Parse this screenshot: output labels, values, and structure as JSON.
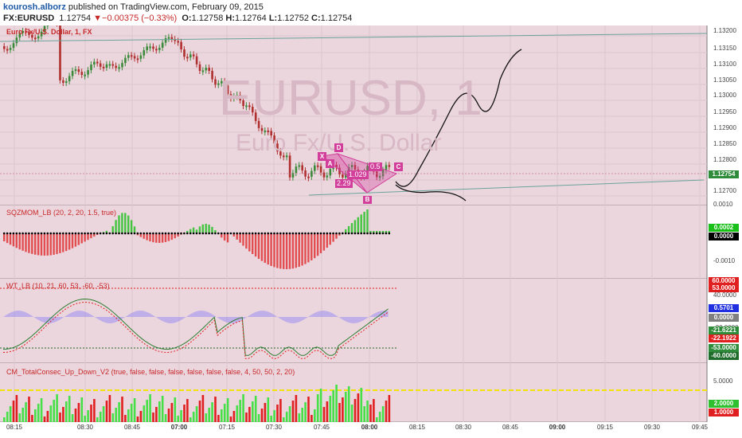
{
  "header": {
    "author": "kourosh.alborz",
    "published_text": " published on TradingView.com, February 09, 2015",
    "symbol": "FX:EURUSD",
    "last_price": "1.12754",
    "change": "−0.00375 (−0.33%)",
    "ohlc": [
      {
        "label": "O:",
        "value": "1.12758"
      },
      {
        "label": "H:",
        "value": "1.12764"
      },
      {
        "label": "L:",
        "value": "1.12752"
      },
      {
        "label": "C:",
        "value": "1.12754"
      }
    ]
  },
  "watermark": {
    "symbol": "EURUSD, 1",
    "name": "Euro Fx/U.S. Dollar"
  },
  "panes": {
    "price": {
      "label": "Euro Fx/U.S. Dollar, 1, FX",
      "y_ticks": [
        "1.13200",
        "1.13150",
        "1.13100",
        "1.13050",
        "1.13000",
        "1.12950",
        "1.12900",
        "1.12850",
        "1.12800",
        "1.12700"
      ],
      "current_tag": "1.12754",
      "pattern_labels": {
        "x": "X",
        "a": "A",
        "b": "B",
        "c": "C",
        "d": "D",
        "r1": "2.29",
        "r2": "1.029",
        "r3": "0.5"
      }
    },
    "sqzmom": {
      "label": "SQZMOM_LB (20, 2, 20, 1.5, true)",
      "y_ticks": [
        "0.0010",
        "-0.0010"
      ],
      "tags": [
        "0.0002",
        "0.0000"
      ]
    },
    "wt": {
      "label": "WT_LB (10, 21, 60, 53, -60, -53)",
      "y_ticks": [
        "40.0000",
        "-20.0000"
      ],
      "tags": [
        "60.0000",
        "53.0000",
        "0.5701",
        "0.0000",
        "-21.6221",
        "-22.1922",
        "-53.0000",
        "-60.0000"
      ]
    },
    "cm": {
      "label": "CM_TotalConsec_Up_Down_V2 (true, false, false, false, false, false, false, 4, 50, 50, 2, 20)",
      "y_ticks": [
        "5.0000"
      ],
      "tags": [
        "2.0000",
        "1.0000"
      ]
    }
  },
  "x_axis": [
    {
      "label": "08:15",
      "bold": false
    },
    {
      "label": "08:30",
      "bold": false
    },
    {
      "label": "08:45",
      "bold": false
    },
    {
      "label": "07:00",
      "bold": true
    },
    {
      "label": "07:15",
      "bold": false
    },
    {
      "label": "07:30",
      "bold": false
    },
    {
      "label": "07:45",
      "bold": false
    },
    {
      "label": "08:00",
      "bold": true
    },
    {
      "label": "08:15",
      "bold": false
    },
    {
      "label": "08:30",
      "bold": false
    },
    {
      "label": "08:45",
      "bold": false
    },
    {
      "label": "09:00",
      "bold": true
    },
    {
      "label": "09:15",
      "bold": false
    },
    {
      "label": "09:30",
      "bold": false
    },
    {
      "label": "09:45",
      "bold": false
    }
  ],
  "colors": {
    "background": "#ecd6de",
    "up_candle": "#3a8a3a",
    "down_candle": "#b03030",
    "trend_line": "#6aa39a",
    "pattern": "#d23f9b",
    "sqz_up": "#19c019",
    "sqz_down": "#e02a2a",
    "cm_up": "#48e048",
    "cm_down": "#e02020",
    "cm_threshold": "#f2e200"
  }
}
